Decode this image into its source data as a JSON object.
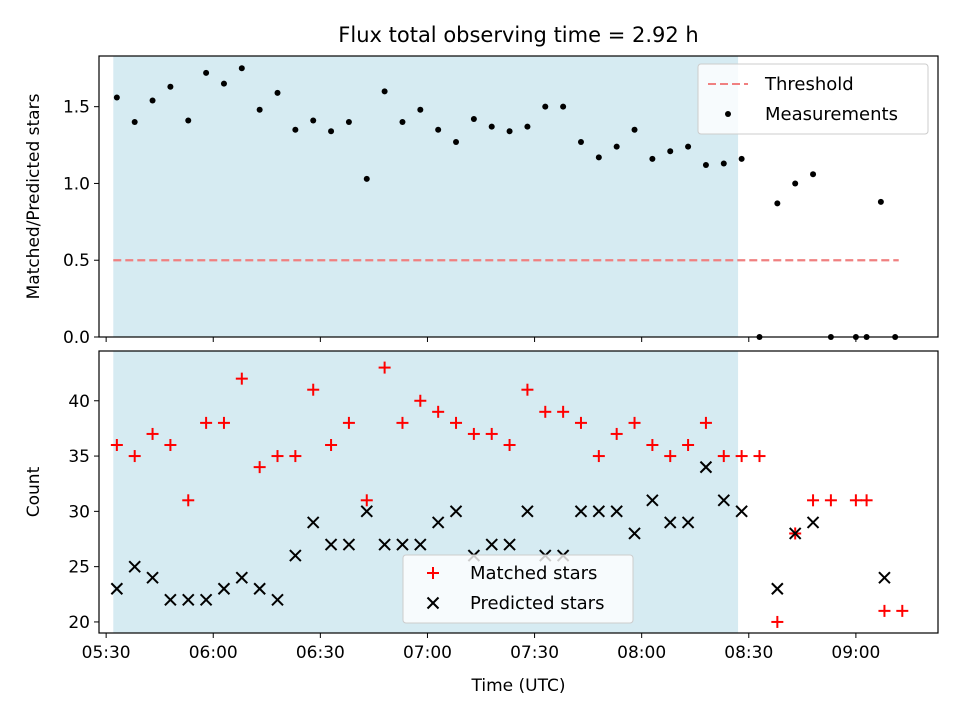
{
  "title": "Flux total observing time = 2.92 h",
  "xlabel": "Time (UTC)",
  "x_ticks": [
    "05:30",
    "06:00",
    "06:30",
    "07:00",
    "07:30",
    "08:00",
    "08:30",
    "09:00"
  ],
  "colors": {
    "shade": "#add8e6",
    "threshold": "#f08080",
    "measurements": "#000000",
    "matched": "#ff0000",
    "predicted": "#000000"
  },
  "chart_data": [
    {
      "type": "scatter",
      "ylabel": "Matched/Predicted stars",
      "xlim": [
        "05:28",
        "09:23"
      ],
      "ylim": [
        0,
        1.83
      ],
      "yticks": [
        0.0,
        0.5,
        1.0,
        1.5
      ],
      "ytick_labels": [
        "0.0",
        "0.5",
        "1.0",
        "1.5"
      ],
      "shaded_interval": [
        "05:32",
        "08:27"
      ],
      "threshold": {
        "name": "Threshold",
        "y": 0.5,
        "x": [
          "05:32",
          "09:12"
        ]
      },
      "legend": [
        "Threshold",
        "Measurements"
      ],
      "legend_position": "upper right",
      "series": [
        {
          "name": "Measurements",
          "x": [
            "05:33",
            "05:38",
            "05:43",
            "05:48",
            "05:53",
            "05:58",
            "06:03",
            "06:08",
            "06:13",
            "06:18",
            "06:23",
            "06:28",
            "06:33",
            "06:38",
            "06:43",
            "06:48",
            "06:53",
            "06:58",
            "07:03",
            "07:08",
            "07:13",
            "07:18",
            "07:23",
            "07:28",
            "07:33",
            "07:38",
            "07:43",
            "07:48",
            "07:53",
            "07:58",
            "08:03",
            "08:08",
            "08:13",
            "08:18",
            "08:23",
            "08:28",
            "08:33",
            "08:38",
            "08:43",
            "08:48",
            "08:53",
            "09:00",
            "09:03",
            "09:07",
            "09:11"
          ],
          "y": [
            1.56,
            1.4,
            1.54,
            1.63,
            1.41,
            1.72,
            1.65,
            1.75,
            1.48,
            1.59,
            1.35,
            1.41,
            1.34,
            1.4,
            1.03,
            1.6,
            1.4,
            1.48,
            1.35,
            1.27,
            1.42,
            1.37,
            1.34,
            1.37,
            1.5,
            1.5,
            1.27,
            1.17,
            1.24,
            1.35,
            1.16,
            1.21,
            1.24,
            1.12,
            1.13,
            1.16,
            0.0,
            0.87,
            1.0,
            1.06,
            0.0,
            0.0,
            0.0,
            0.88,
            0.0
          ]
        }
      ]
    },
    {
      "type": "scatter",
      "ylabel": "Count",
      "xlim": [
        "05:28",
        "09:23"
      ],
      "ylim": [
        19,
        44.5
      ],
      "yticks": [
        20,
        25,
        30,
        35,
        40
      ],
      "ytick_labels": [
        "20",
        "25",
        "30",
        "35",
        "40"
      ],
      "shaded_interval": [
        "05:32",
        "08:27"
      ],
      "legend": [
        "Matched stars",
        "Predicted stars"
      ],
      "legend_position": "lower center",
      "series": [
        {
          "name": "Matched stars",
          "marker": "+",
          "x": [
            "05:33",
            "05:38",
            "05:43",
            "05:48",
            "05:53",
            "05:58",
            "06:03",
            "06:08",
            "06:13",
            "06:18",
            "06:23",
            "06:28",
            "06:33",
            "06:38",
            "06:43",
            "06:48",
            "06:53",
            "06:58",
            "07:03",
            "07:08",
            "07:13",
            "07:18",
            "07:23",
            "07:28",
            "07:33",
            "07:38",
            "07:43",
            "07:48",
            "07:53",
            "07:58",
            "08:03",
            "08:08",
            "08:13",
            "08:18",
            "08:23",
            "08:28",
            "08:33",
            "08:38",
            "08:43",
            "08:48",
            "08:53",
            "09:00",
            "09:03",
            "09:08",
            "09:13"
          ],
          "y": [
            36,
            35,
            37,
            36,
            31,
            38,
            38,
            42,
            34,
            35,
            35,
            41,
            36,
            38,
            31,
            43,
            38,
            40,
            39,
            38,
            37,
            37,
            36,
            41,
            39,
            39,
            38,
            35,
            37,
            38,
            36,
            35,
            36,
            38,
            35,
            35,
            35,
            20,
            28,
            31,
            31,
            31,
            31,
            21,
            21
          ]
        },
        {
          "name": "Predicted stars",
          "marker": "x",
          "x": [
            "05:33",
            "05:38",
            "05:43",
            "05:48",
            "05:53",
            "05:58",
            "06:03",
            "06:08",
            "06:13",
            "06:18",
            "06:23",
            "06:28",
            "06:33",
            "06:38",
            "06:43",
            "06:48",
            "06:53",
            "06:58",
            "07:03",
            "07:08",
            "07:13",
            "07:18",
            "07:23",
            "07:28",
            "07:33",
            "07:38",
            "07:43",
            "07:48",
            "07:53",
            "07:58",
            "08:03",
            "08:08",
            "08:13",
            "08:18",
            "08:23",
            "08:28",
            "08:38",
            "08:43",
            "08:48",
            "09:08"
          ],
          "y": [
            23,
            25,
            24,
            22,
            22,
            22,
            23,
            24,
            23,
            22,
            26,
            29,
            27,
            27,
            30,
            27,
            27,
            27,
            29,
            30,
            26,
            27,
            27,
            30,
            26,
            26,
            30,
            30,
            30,
            28,
            31,
            29,
            29,
            34,
            31,
            30,
            23,
            28,
            29,
            24
          ]
        }
      ]
    }
  ]
}
